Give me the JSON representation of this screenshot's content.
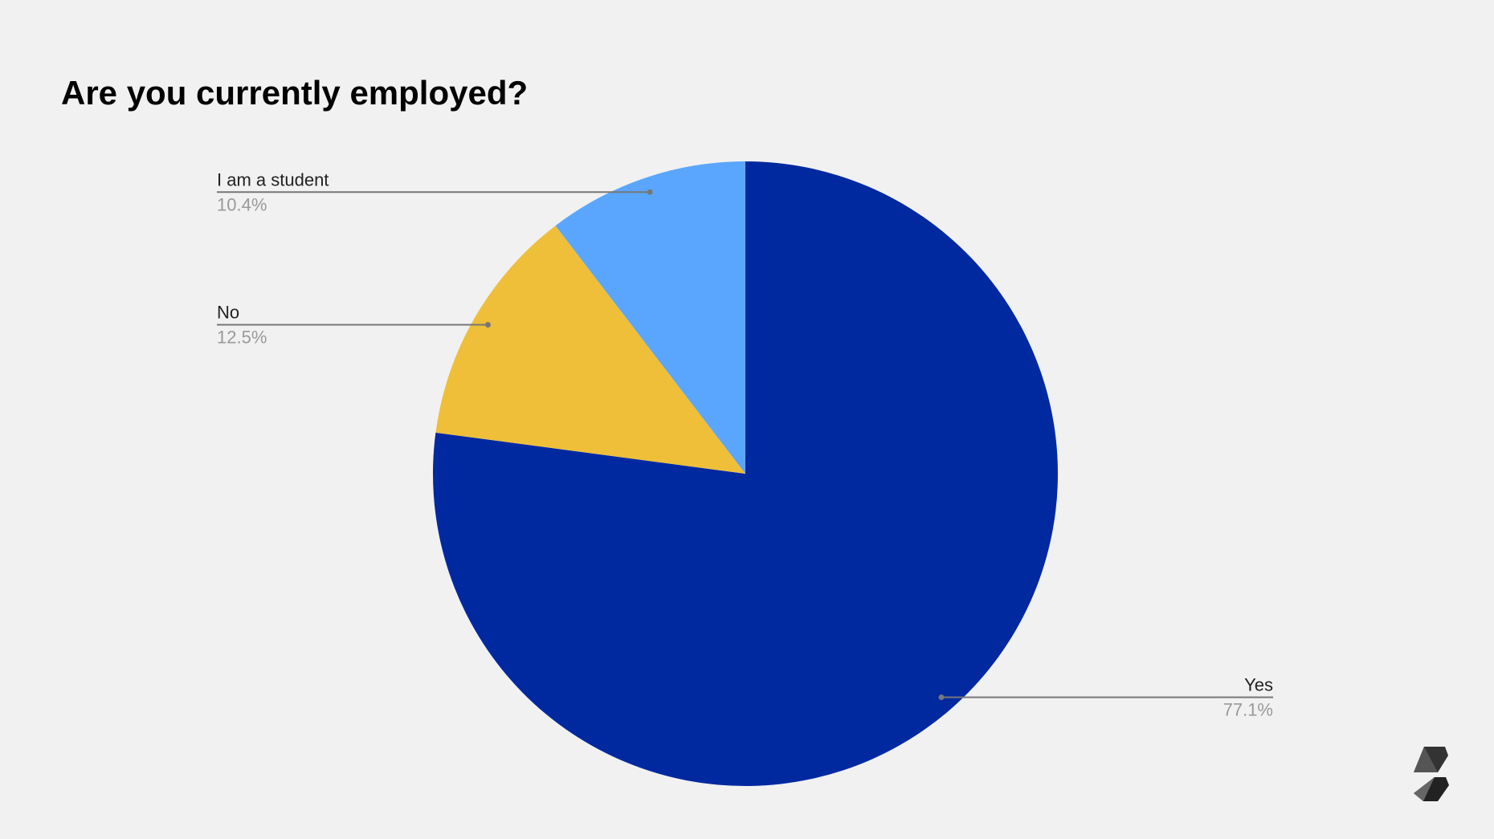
{
  "chart_data": {
    "type": "pie",
    "title": "Are you currently employed?",
    "categories": [
      "Yes",
      "No",
      "I am a student"
    ],
    "values": [
      77.1,
      12.5,
      10.4
    ],
    "value_labels": [
      "77.1%",
      "12.5%",
      "10.4%"
    ],
    "colors": [
      "#0029a0",
      "#efbf3a",
      "#5aa6ff"
    ]
  }
}
